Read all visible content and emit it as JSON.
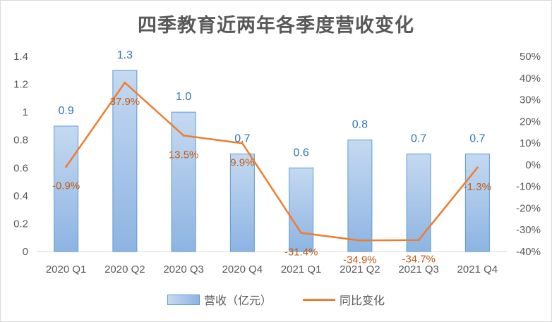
{
  "chart_data": {
    "type": "bar",
    "title": "四季教育近两年各季度营收变化",
    "categories": [
      "2020 Q1",
      "2020 Q2",
      "2020 Q3",
      "2020 Q4",
      "2021 Q1",
      "2021 Q2",
      "2021 Q3",
      "2021 Q4"
    ],
    "series": [
      {
        "name": "营收（亿元）",
        "type": "bar",
        "axis": "left",
        "values": [
          0.9,
          1.3,
          1.0,
          0.7,
          0.6,
          0.8,
          0.7,
          0.7
        ],
        "labels": [
          "0.9",
          "1.3",
          "1.0",
          "0.7",
          "0.6",
          "0.8",
          "0.7",
          "0.7"
        ]
      },
      {
        "name": "同比变化",
        "type": "line",
        "axis": "right",
        "values": [
          -0.9,
          37.9,
          13.5,
          9.9,
          -31.4,
          -34.9,
          -34.7,
          -1.3
        ],
        "labels": [
          "-0.9%",
          "37.9%",
          "13.5%",
          "9.9%",
          "-31.4%",
          "-34.9%",
          "-34.7%",
          "-1.3%"
        ]
      }
    ],
    "y_left": {
      "ylim": [
        0,
        1.4
      ],
      "ticks": [
        0,
        0.2,
        0.4,
        0.6,
        0.8,
        1,
        1.2,
        1.4
      ],
      "tick_labels": [
        "0",
        "0.2",
        "0.4",
        "0.6",
        "0.8",
        "1",
        "1.2",
        "1.4"
      ]
    },
    "y_right": {
      "ylim": [
        -40,
        50
      ],
      "ticks": [
        -40,
        -30,
        -20,
        -10,
        0,
        10,
        20,
        30,
        40,
        50
      ],
      "tick_labels": [
        "-40%",
        "-30%",
        "-20%",
        "-10%",
        "0%",
        "10%",
        "20%",
        "30%",
        "40%",
        "50%"
      ]
    },
    "legend_position": "bottom",
    "grid": false
  },
  "colors": {
    "bar_top": "#c5d9f1",
    "bar_bottom": "#8db4e2",
    "bar_border": "#5b9bd5",
    "line": "#ed7d31",
    "bar_label": "#2e75b6",
    "line_label": "#c55a11"
  }
}
